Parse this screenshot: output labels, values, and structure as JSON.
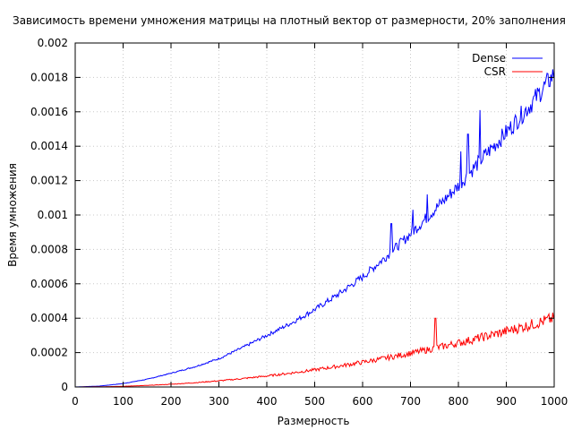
{
  "chart_data": {
    "type": "line",
    "title": "Зависимость времени умножения матрицы на плотный вектор от размерности, 20% заполнения",
    "xlabel": "Размерность",
    "ylabel": "Время умножения",
    "xlim": [
      0,
      1000
    ],
    "ylim": [
      0,
      0.002
    ],
    "x_ticks": [
      {
        "value": 0,
        "label": "0"
      },
      {
        "value": 100,
        "label": "100"
      },
      {
        "value": 200,
        "label": "200"
      },
      {
        "value": 300,
        "label": "300"
      },
      {
        "value": 400,
        "label": "400"
      },
      {
        "value": 500,
        "label": "500"
      },
      {
        "value": 600,
        "label": "600"
      },
      {
        "value": 700,
        "label": "700"
      },
      {
        "value": 800,
        "label": "800"
      },
      {
        "value": 900,
        "label": "900"
      },
      {
        "value": 1000,
        "label": "1000"
      }
    ],
    "y_ticks": [
      {
        "value": 0,
        "label": "0"
      },
      {
        "value": 0.0002,
        "label": "0.0002"
      },
      {
        "value": 0.0004,
        "label": "0.0004"
      },
      {
        "value": 0.0006,
        "label": "0.0006"
      },
      {
        "value": 0.0008,
        "label": "0.0008"
      },
      {
        "value": 0.001,
        "label": "0.001"
      },
      {
        "value": 0.0012,
        "label": "0.0012"
      },
      {
        "value": 0.0014,
        "label": "0.0014"
      },
      {
        "value": 0.0016,
        "label": "0.0016"
      },
      {
        "value": 0.0018,
        "label": "0.0018"
      },
      {
        "value": 0.002,
        "label": "0.002"
      }
    ],
    "grid": true,
    "legend_position": "top-right",
    "series": [
      {
        "name": "Dense",
        "color": "#0000ff",
        "x": [
          0,
          50,
          100,
          150,
          200,
          250,
          300,
          350,
          400,
          450,
          500,
          550,
          600,
          650,
          700,
          750,
          800,
          850,
          900,
          950,
          1000
        ],
        "y": [
          0,
          5e-06,
          2e-05,
          4.5e-05,
          8e-05,
          0.000118,
          0.000165,
          0.00023,
          0.0003,
          0.00037,
          0.00045,
          0.00054,
          0.00064,
          0.00076,
          0.00089,
          0.00103,
          0.00117,
          0.00133,
          0.00148,
          0.00164,
          0.00182
        ]
      },
      {
        "name": "CSR",
        "color": "#ff0000",
        "x": [
          0,
          50,
          100,
          150,
          200,
          250,
          300,
          350,
          400,
          450,
          500,
          550,
          600,
          650,
          700,
          750,
          800,
          850,
          900,
          950,
          1000
        ],
        "y": [
          0,
          1e-06,
          4e-06,
          9e-06,
          1.6e-05,
          2.5e-05,
          3.6e-05,
          4.9e-05,
          6.4e-05,
          8.1e-05,
          0.0001,
          0.000121,
          0.000144,
          0.000169,
          0.000196,
          0.000225,
          0.000256,
          0.000289,
          0.000324,
          0.000361,
          0.0004
        ]
      }
    ],
    "annotations": [
      {
        "series": "Dense",
        "x": 845,
        "y": 0.00161
      },
      {
        "series": "Dense",
        "x": 805,
        "y": 0.00137
      },
      {
        "series": "Dense",
        "x": 820,
        "y": 0.00147
      },
      {
        "series": "Dense",
        "x": 660,
        "y": 0.00095
      },
      {
        "series": "Dense",
        "x": 705,
        "y": 0.00103
      },
      {
        "series": "Dense",
        "x": 735,
        "y": 0.00112
      },
      {
        "series": "CSR",
        "x": 752,
        "y": 0.0004
      }
    ]
  }
}
